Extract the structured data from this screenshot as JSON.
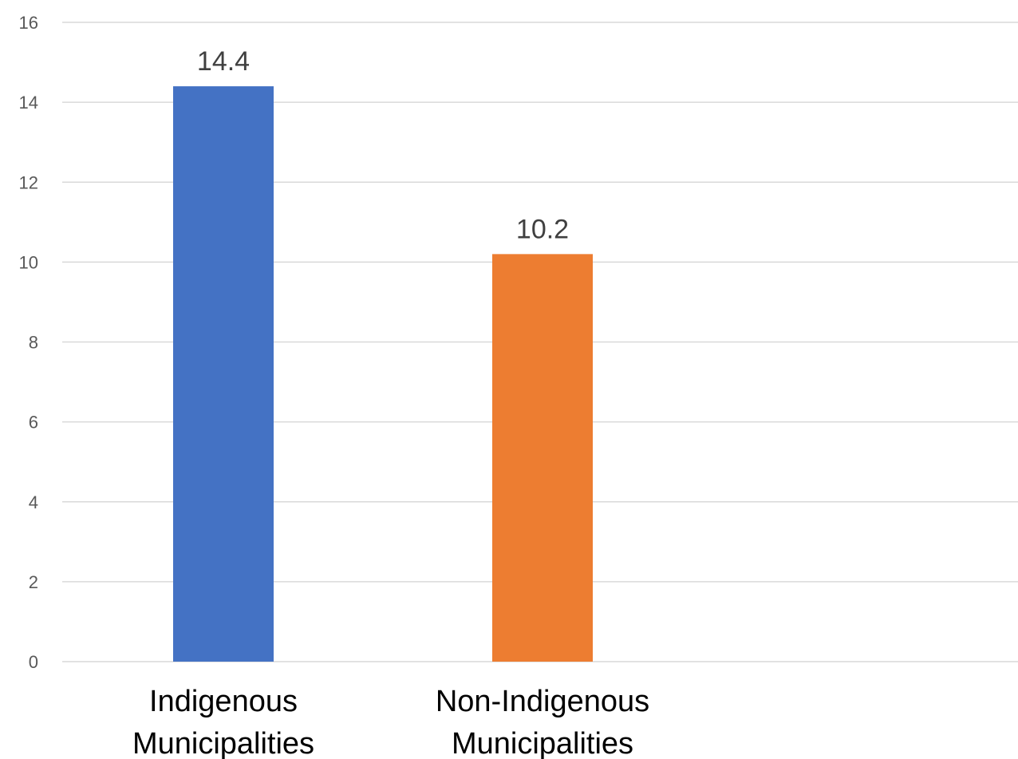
{
  "chart_data": {
    "type": "bar",
    "categories": [
      [
        "Indigenous",
        "Municipalities"
      ],
      [
        "Non-Indigenous",
        "Municipalities"
      ]
    ],
    "values": [
      14.4,
      10.2
    ],
    "data_labels": [
      "14.4",
      "10.2"
    ],
    "colors": [
      "#4472c4",
      "#ed7d31"
    ],
    "ylim": [
      0,
      16
    ],
    "yticks": [
      0,
      2,
      4,
      6,
      8,
      10,
      12,
      14,
      16
    ],
    "grid": true,
    "legend": "none",
    "title": "",
    "xlabel": "",
    "ylabel": ""
  }
}
